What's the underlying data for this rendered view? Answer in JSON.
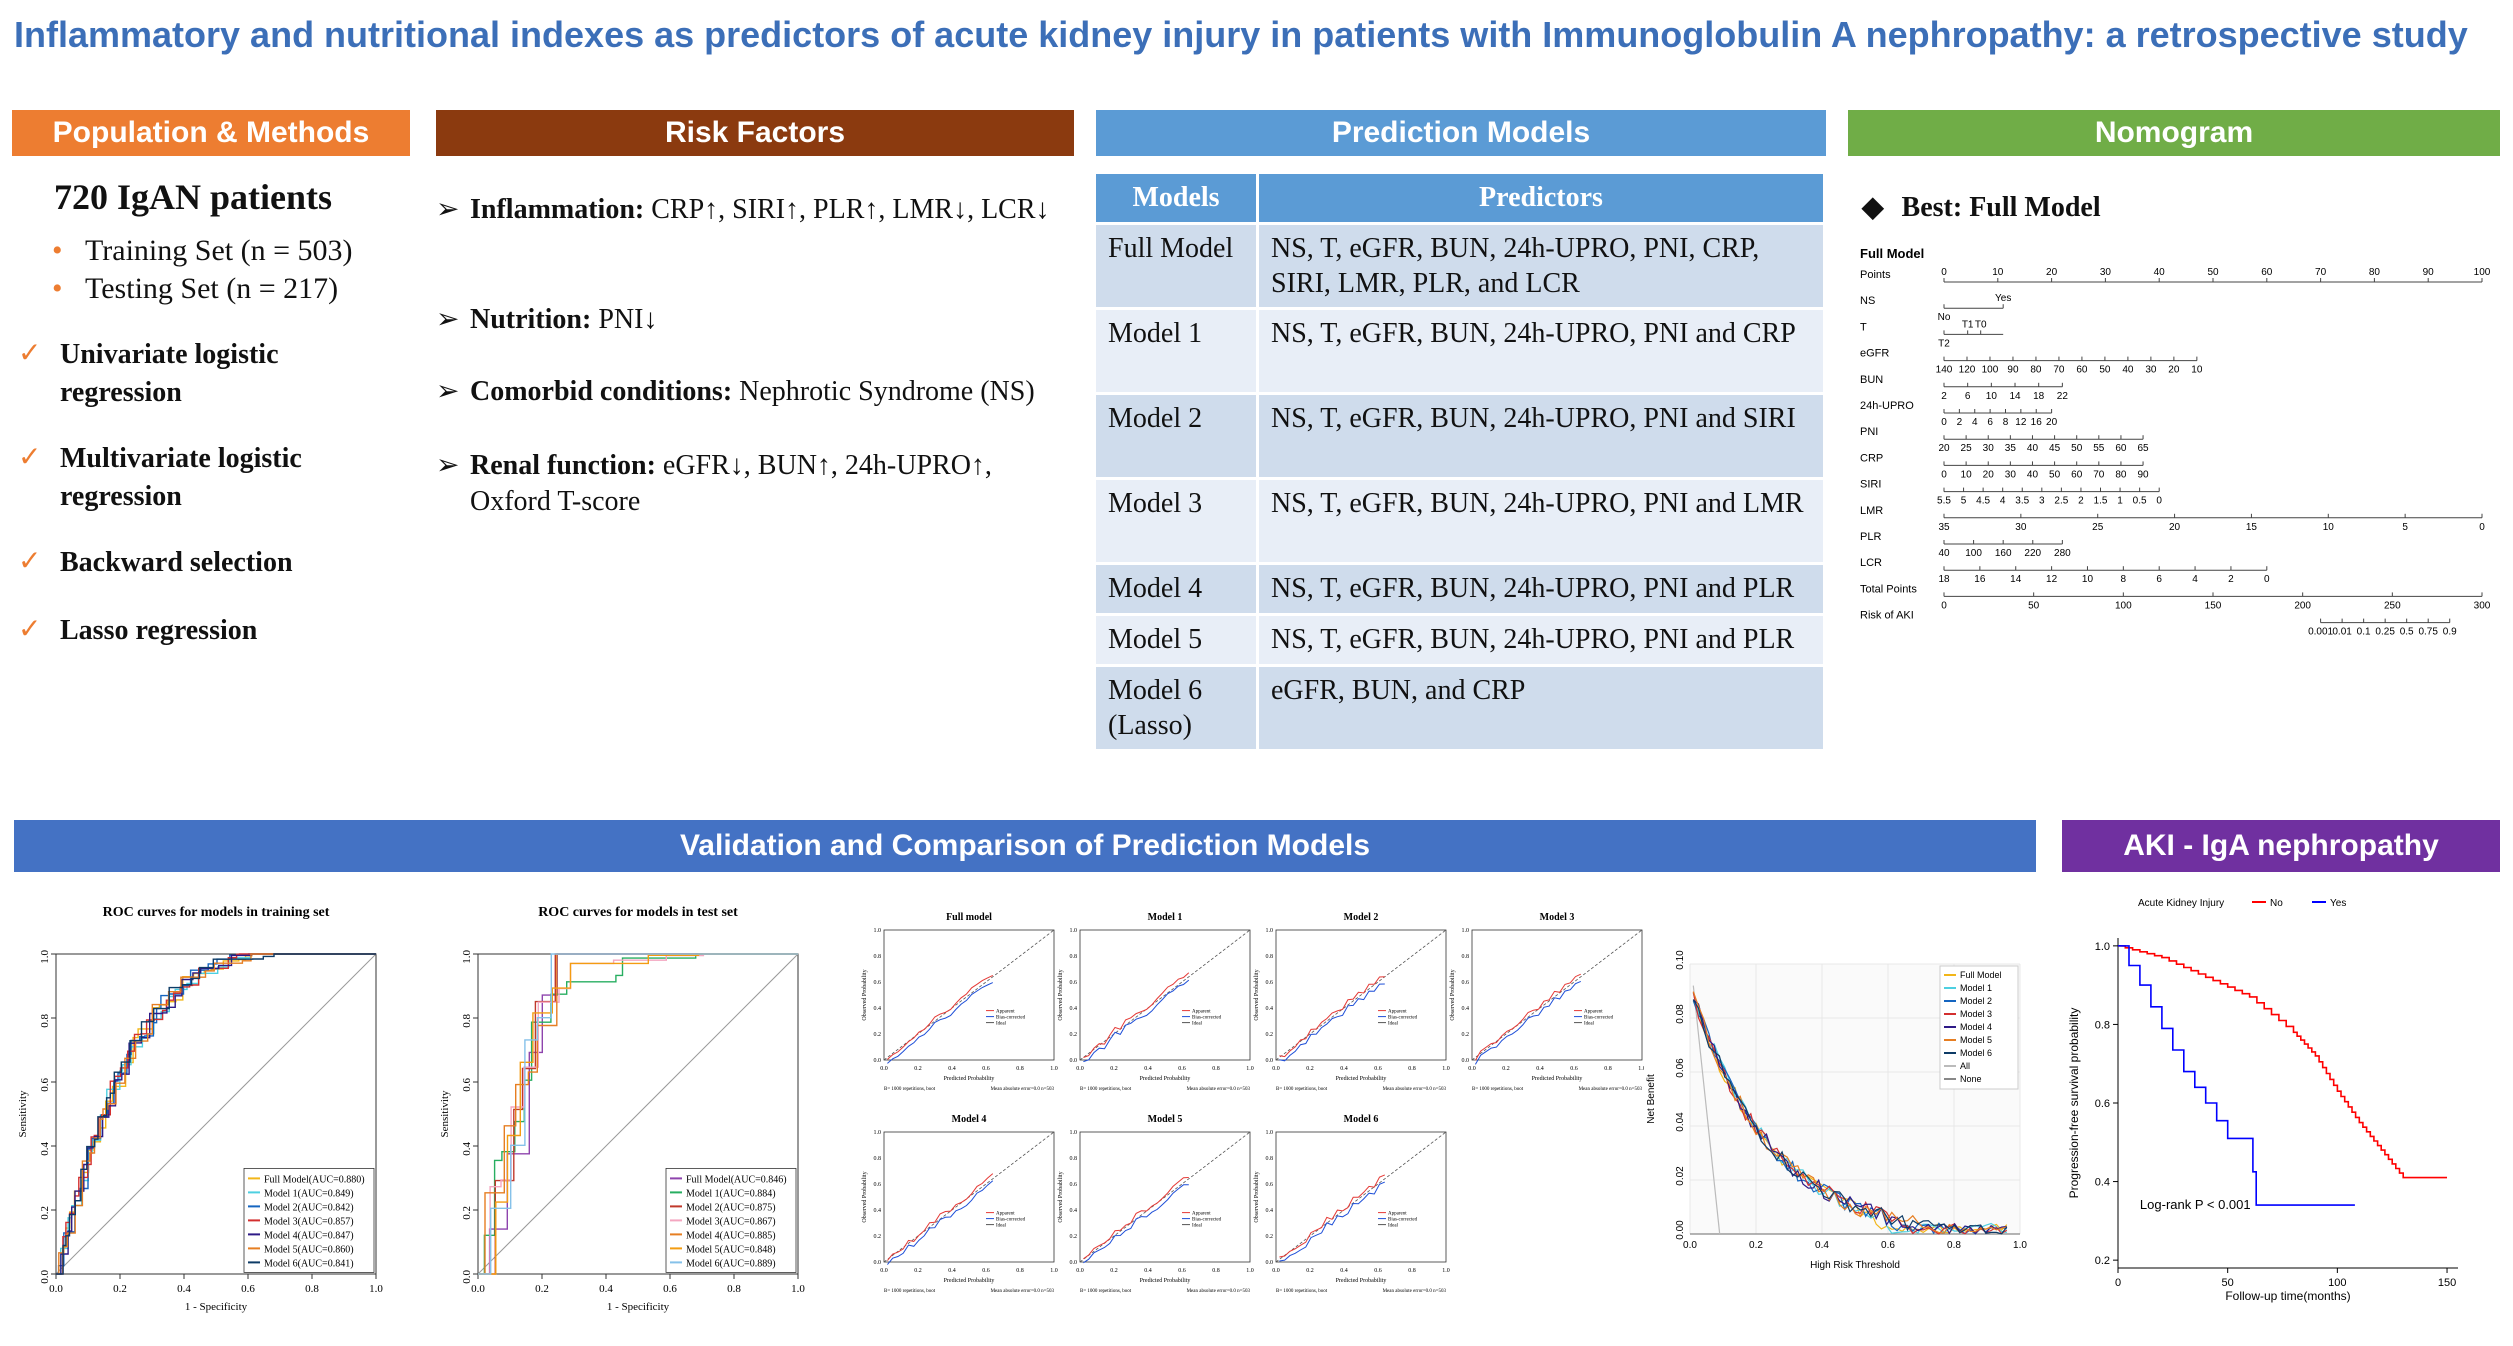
{
  "title": "Inflammatory and nutritional indexes as predictors of acute kidney injury in patients with Immunoglobulin A nephropathy: a retrospective study",
  "headers": {
    "population": "Population & Methods",
    "risk": "Risk Factors",
    "models": "Prediction Models",
    "nomogram": "Nomogram",
    "validation": "Validation and Comparison of Prediction Models",
    "aki": "AKI - IgA nephropathy"
  },
  "colors": {
    "orange": "#ed7d31",
    "brown": "#8b3a0f",
    "blue": "#5b9bd5",
    "green": "#70ad47",
    "darkblue": "#4472c4",
    "purple": "#7030a0"
  },
  "population": {
    "count": "720 IgAN patients",
    "sets": [
      "Training Set (n = 503)",
      "Testing Set (n = 217)"
    ],
    "methods": [
      "Univariate logistic regression",
      "Multivariate logistic regression",
      "Backward selection",
      "Lasso regression"
    ]
  },
  "risk_factors": [
    {
      "label": "Inflammation:",
      "value": "CRP↑, SIRI↑, PLR↑, LMR↓, LCR↓"
    },
    {
      "label": "Nutrition:",
      "value": "PNI↓"
    },
    {
      "label": "Comorbid conditions:",
      "value": "Nephrotic Syndrome (NS)"
    },
    {
      "label": "Renal function:",
      "value": "eGFR↓, BUN↑, 24h-UPRO↑, Oxford T-score"
    }
  ],
  "models_table": {
    "headers": [
      "Models",
      "Predictors"
    ],
    "rows": [
      [
        "Full Model",
        "NS, T, eGFR, BUN, 24h-UPRO, PNI, CRP, SIRI, LMR, PLR, and LCR"
      ],
      [
        "Model 1",
        "NS, T, eGFR, BUN, 24h-UPRO, PNI and CRP"
      ],
      [
        "Model 2",
        "NS, T, eGFR, BUN, 24h-UPRO, PNI and SIRI"
      ],
      [
        "Model 3",
        "NS, T, eGFR, BUN, 24h-UPRO, PNI and LMR"
      ],
      [
        "Model 4",
        "NS, T, eGFR, BUN, 24h-UPRO, PNI and PLR"
      ],
      [
        "Model 5",
        "NS, T, eGFR, BUN, 24h-UPRO, PNI and PLR"
      ],
      [
        "Model 6 (Lasso)",
        "eGFR, BUN, and CRP"
      ]
    ]
  },
  "nomogram": {
    "best": "Best: Full Model",
    "title": "Full Model",
    "rows": [
      {
        "name": "Points",
        "ticks": [
          "0",
          "10",
          "20",
          "30",
          "40",
          "50",
          "60",
          "70",
          "80",
          "90",
          "100"
        ]
      },
      {
        "name": "NS",
        "ticks": [
          "No",
          "Yes"
        ]
      },
      {
        "name": "T",
        "ticks": [
          "T2",
          "T0",
          "T1"
        ]
      },
      {
        "name": "eGFR",
        "ticks": [
          "140",
          "120",
          "100",
          "90",
          "80",
          "70",
          "60",
          "50",
          "40",
          "30",
          "20",
          "10"
        ]
      },
      {
        "name": "BUN",
        "ticks": [
          "2",
          "6",
          "10",
          "14",
          "18",
          "22"
        ]
      },
      {
        "name": "24h-UPRO",
        "ticks": [
          "0",
          "2",
          "4",
          "6",
          "8",
          "12",
          "16",
          "20"
        ]
      },
      {
        "name": "PNI",
        "ticks": [
          "20",
          "25",
          "30",
          "35",
          "40",
          "45",
          "50",
          "55",
          "60",
          "65"
        ]
      },
      {
        "name": "CRP",
        "ticks": [
          "0",
          "10",
          "20",
          "30",
          "40",
          "50",
          "60",
          "70",
          "80",
          "90"
        ]
      },
      {
        "name": "SIRI",
        "ticks": [
          "5.5",
          "5",
          "4.5",
          "4",
          "3.5",
          "3",
          "2.5",
          "2",
          "1.5",
          "1",
          "0.5",
          "0"
        ]
      },
      {
        "name": "LMR",
        "ticks": [
          "35",
          "30",
          "25",
          "20",
          "15",
          "10",
          "5",
          "0"
        ]
      },
      {
        "name": "PLR",
        "ticks": [
          "40",
          "100",
          "160",
          "220",
          "280"
        ]
      },
      {
        "name": "LCR",
        "ticks": [
          "18",
          "16",
          "14",
          "12",
          "10",
          "8",
          "6",
          "4",
          "2",
          "0"
        ]
      },
      {
        "name": "Total Points",
        "ticks": [
          "0",
          "50",
          "100",
          "150",
          "200",
          "250",
          "300"
        ]
      },
      {
        "name": "Risk of AKI",
        "ticks": [
          "0.001",
          "0.01",
          "0.1",
          "0.25",
          "0.5",
          "0.75",
          "0.9"
        ]
      }
    ]
  },
  "chart_data": [
    {
      "type": "line",
      "title": "ROC curves for models in training set",
      "xlabel": "1 - Specificity",
      "ylabel": "Sensitivity",
      "xlim": [
        0,
        1
      ],
      "ylim": [
        0,
        1
      ],
      "ticks": [
        "0.0",
        "0.2",
        "0.4",
        "0.6",
        "0.8",
        "1.0"
      ],
      "legend_position": "bottom-right",
      "series": [
        {
          "name": "Full Model(AUC=0.880)",
          "color": "#f2b619"
        },
        {
          "name": "Model 1(AUC=0.849)",
          "color": "#4dd0e1"
        },
        {
          "name": "Model 2(AUC=0.842)",
          "color": "#1565c0"
        },
        {
          "name": "Model 3(AUC=0.857)",
          "color": "#d32f2f"
        },
        {
          "name": "Model 4(AUC=0.847)",
          "color": "#2e1a87"
        },
        {
          "name": "Model 5(AUC=0.860)",
          "color": "#e67e22"
        },
        {
          "name": "Model 6(AUC=0.841)",
          "color": "#0d3b66"
        }
      ]
    },
    {
      "type": "line",
      "title": "ROC curves for models in test set",
      "xlabel": "1 - Specificity",
      "ylabel": "Sensitivity",
      "xlim": [
        0,
        1
      ],
      "ylim": [
        0,
        1
      ],
      "ticks": [
        "0.0",
        "0.2",
        "0.4",
        "0.6",
        "0.8",
        "1.0"
      ],
      "legend_position": "bottom-right",
      "series": [
        {
          "name": "Full Model(AUC=0.846)",
          "color": "#8e44ad"
        },
        {
          "name": "Model 1(AUC=0.884)",
          "color": "#27ae60"
        },
        {
          "name": "Model 2(AUC=0.875)",
          "color": "#c0392b"
        },
        {
          "name": "Model 3(AUC=0.867)",
          "color": "#f4a6c0"
        },
        {
          "name": "Model 4(AUC=0.885)",
          "color": "#e67e22"
        },
        {
          "name": "Model 5(AUC=0.848)",
          "color": "#f39c12"
        },
        {
          "name": "Model 6(AUC=0.889)",
          "color": "#85c1e9"
        }
      ]
    },
    {
      "type": "line",
      "panels": [
        "Full model",
        "Model 1",
        "Model 2",
        "Model 3",
        "Model 4",
        "Model 5",
        "Model 6"
      ],
      "xlabel": "Predicted Probability",
      "ylabel": "Observed Probability",
      "ticks": [
        "0.0",
        "0.2",
        "0.4",
        "0.6",
        "0.8",
        "1.0"
      ],
      "legend": [
        "Apparent",
        "Bias-corrected",
        "Ideal"
      ],
      "footnote_left": "B= 1000 repetitions, boot",
      "footnote_right": "Mean absolute error=0.0 n=503"
    },
    {
      "type": "line",
      "xlabel": "High Risk Threshold",
      "ylabel": "Net Benefit",
      "xticks": [
        "0.0",
        "0.2",
        "0.4",
        "0.6",
        "0.8",
        "1.0"
      ],
      "yticks": [
        "0.00",
        "0.02",
        "0.04",
        "0.06",
        "0.08",
        "0.10"
      ],
      "series": [
        {
          "name": "Full Model",
          "color": "#f2b619"
        },
        {
          "name": "Model 1",
          "color": "#4dd0e1"
        },
        {
          "name": "Model 2",
          "color": "#1565c0"
        },
        {
          "name": "Model 3",
          "color": "#d32f2f"
        },
        {
          "name": "Model 4",
          "color": "#2e1a87"
        },
        {
          "name": "Model 5",
          "color": "#e67e22"
        },
        {
          "name": "Model 6",
          "color": "#0d3b66"
        },
        {
          "name": "All",
          "color": "#bbbbbb"
        },
        {
          "name": "None",
          "color": "#888888"
        }
      ]
    },
    {
      "type": "line",
      "legend_title": "Acute Kidney Injury",
      "xlabel": "Follow-up time(months)",
      "ylabel": "Progression-free survival probability",
      "xticks": [
        "0",
        "50",
        "100",
        "150"
      ],
      "yticks": [
        "0.2",
        "0.4",
        "0.6",
        "0.8",
        "1.0"
      ],
      "annotation": "Log-rank P < 0.001",
      "series": [
        {
          "name": "No",
          "color": "#ff0000",
          "x": [
            0,
            20,
            40,
            60,
            80,
            90,
            100,
            110,
            120,
            130,
            150
          ],
          "y": [
            1.0,
            0.97,
            0.92,
            0.87,
            0.78,
            0.72,
            0.63,
            0.55,
            0.48,
            0.41,
            0.41
          ]
        },
        {
          "name": "Yes",
          "color": "#0000ff",
          "x": [
            0,
            10,
            20,
            30,
            40,
            50,
            60,
            63,
            108
          ],
          "y": [
            1.0,
            0.9,
            0.79,
            0.68,
            0.6,
            0.51,
            0.51,
            0.34,
            0.34
          ]
        }
      ]
    }
  ]
}
